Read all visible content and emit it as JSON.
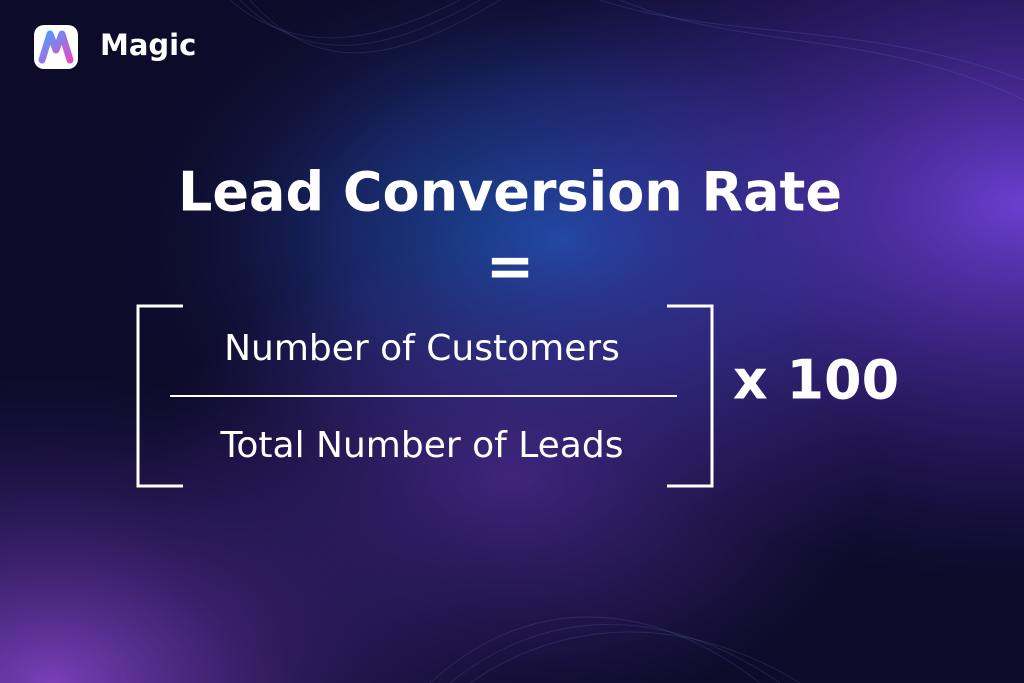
{
  "brand": {
    "name": "Magic"
  },
  "formula": {
    "title": "Lead Conversion Rate",
    "equals": "=",
    "numerator": "Number of Customers",
    "denominator": "Total Number of Leads",
    "multiplier": "x 100"
  }
}
